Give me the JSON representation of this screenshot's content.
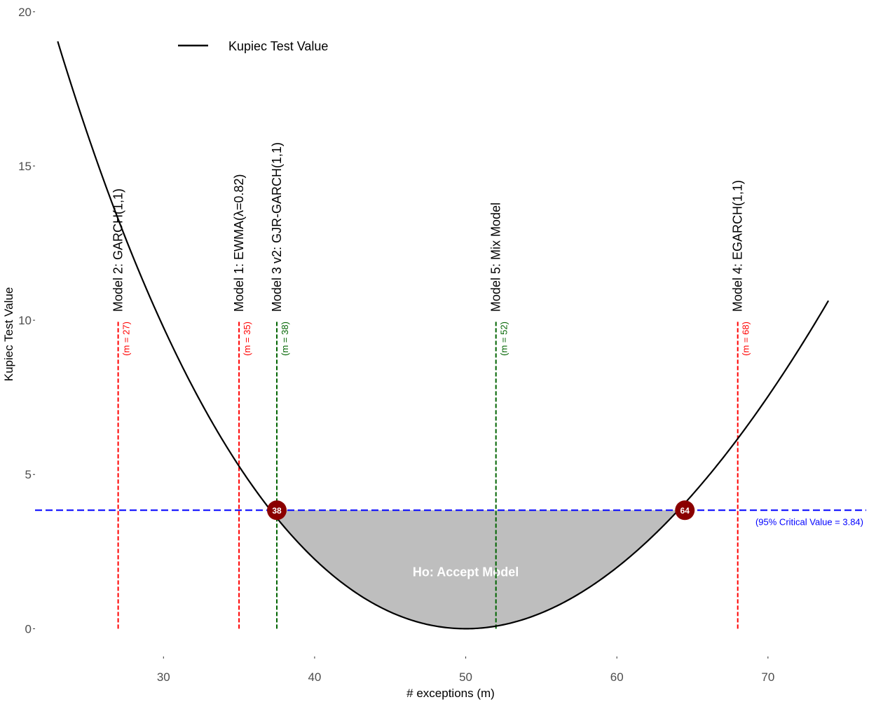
{
  "colors": {
    "curve": "#000000",
    "critical_line": "#0000ff",
    "model_reject": "#ff0000",
    "model_accept": "#006400",
    "accept_region": "#bebebe",
    "intersection_point": "#8b0000"
  },
  "chart_data": {
    "type": "line",
    "title": "",
    "xlabel": "# exceptions (m)",
    "ylabel": "Kupiec Test Value",
    "xlim": [
      21.5,
      76.5
    ],
    "ylim": [
      -0.9,
      20.2
    ],
    "x_ticks": [
      30,
      40,
      50,
      60,
      70
    ],
    "y_ticks": [
      0,
      5,
      10,
      15,
      20
    ],
    "grid": false,
    "legend": {
      "position": "top-left",
      "entries": [
        {
          "label": "Kupiec Test Value",
          "color": "#000000"
        }
      ]
    },
    "series": [
      {
        "name": "Kupiec Test Value",
        "x": [
          23,
          24,
          25,
          26,
          27,
          28,
          29,
          30,
          31,
          32,
          33,
          34,
          35,
          36,
          37,
          38,
          39,
          40,
          41,
          42,
          43,
          44,
          45,
          46,
          47,
          48,
          49,
          50,
          51,
          52,
          53,
          54,
          55,
          56,
          57,
          58,
          59,
          60,
          61,
          62,
          63,
          64,
          65,
          66,
          67,
          68,
          69,
          70,
          71,
          72,
          73,
          74
        ],
        "y": [
          19.3,
          17.71,
          16.2,
          14.75,
          13.37,
          12.06,
          10.81,
          9.63,
          8.52,
          7.46,
          6.47,
          5.54,
          4.68,
          3.87,
          3.13,
          2.45,
          1.84,
          1.29,
          0.82,
          0.46,
          0.23,
          0.1,
          0.01,
          0.01,
          0.0,
          0.0,
          0.0,
          0.0,
          0.0,
          0.02,
          0.09,
          0.19,
          0.29,
          0.45,
          0.68,
          0.9,
          1.21,
          1.58,
          1.96,
          2.42,
          2.93,
          3.44,
          4.02,
          4.66,
          5.32,
          6.02,
          6.78,
          7.57,
          8.4,
          9.25,
          10.16,
          10.33
        ]
      }
    ],
    "critical_value": {
      "value": 3.84,
      "label": "(95% Critical Value = 3.84)"
    },
    "acceptance_region": {
      "label": "Ho: Accept Model",
      "x_range": [
        37.5,
        64.5
      ]
    },
    "intersection_points": [
      {
        "x": 37.5,
        "y": 3.84,
        "label": "38"
      },
      {
        "x": 64.5,
        "y": 3.84,
        "label": "64"
      }
    ],
    "models": [
      {
        "name": "Model 2: GARCH(1,1)",
        "m": 27,
        "m_label": "(m = 27)",
        "status": "reject",
        "y_top": 10
      },
      {
        "name": "Model 1: EWMA(λ=0.82)",
        "m": 35,
        "m_label": "(m = 35)",
        "status": "reject",
        "y_top": 10
      },
      {
        "name": "Model 3 v2: GJR-GARCH(1,1)",
        "m": 37.5,
        "m_label": "(m = 38)",
        "status": "accept",
        "y_top": 10
      },
      {
        "name": "Model 5: Mix Model",
        "m": 52,
        "m_label": "(m = 52)",
        "status": "accept",
        "y_top": 10
      },
      {
        "name": "Model 4: EGARCH(1,1)",
        "m": 68,
        "m_label": "(m = 68)",
        "status": "reject",
        "y_top": 10
      }
    ]
  }
}
